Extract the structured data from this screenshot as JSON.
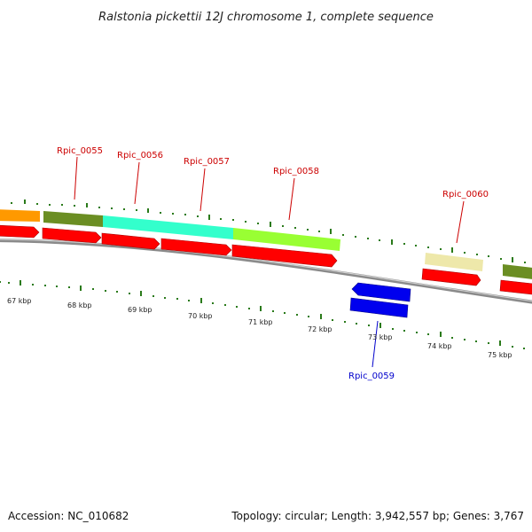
{
  "title": "Ralstonia pickettii 12J chromosome 1, complete sequence",
  "footer": {
    "accession": "Accession: NC_010682",
    "topology": "Topology: circular; Length: 3,942,557 bp; Genes: 3,767"
  },
  "colors": {
    "backbone": "#888888",
    "tick": "#2a7a1a",
    "cds": "#ff0000",
    "label_forward": "#cc0000",
    "label_reverse": "#0000cc",
    "rna_blue": "#0000ee"
  },
  "gene_labels": [
    {
      "text": "Rpic_0055",
      "color": "#cc0000"
    },
    {
      "text": "Rpic_0056",
      "color": "#cc0000"
    },
    {
      "text": "Rpic_0057",
      "color": "#cc0000"
    },
    {
      "text": "Rpic_0058",
      "color": "#cc0000"
    },
    {
      "text": "Rpic_0060",
      "color": "#cc0000"
    },
    {
      "text": "Rpic_0059",
      "color": "#0000cc"
    }
  ],
  "kbp_labels": [
    "67 kbp",
    "68 kbp",
    "69 kbp",
    "70 kbp",
    "71 kbp",
    "72 kbp",
    "73 kbp",
    "74 kbp",
    "75 kbp"
  ],
  "features": [
    {
      "name": "gene-orange",
      "color": "#ff9900"
    },
    {
      "name": "gene-0055",
      "color": "#6b8e23"
    },
    {
      "name": "gene-0056",
      "color": "#33ffcc"
    },
    {
      "name": "gene-0057",
      "color": "#99ff33"
    },
    {
      "name": "gene-0060",
      "color": "#eee8aa"
    },
    {
      "name": "gene-next",
      "color": "#6b8e23"
    }
  ]
}
